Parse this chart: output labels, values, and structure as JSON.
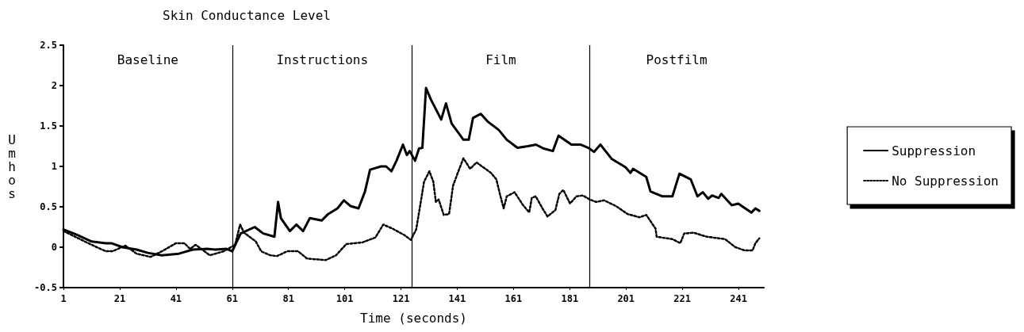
{
  "chart_data": {
    "type": "line",
    "title": "Skin Conductance Level",
    "xlabel": "Time (seconds)",
    "ylabel": "Umhos",
    "xlim": [
      1,
      250
    ],
    "xticks": [
      1,
      21,
      41,
      61,
      81,
      101,
      121,
      141,
      161,
      181,
      201,
      221,
      241
    ],
    "ylim": [
      -0.5,
      2.5
    ],
    "yticks": [
      -0.5,
      0,
      0.5,
      1,
      1.5,
      2,
      2.5
    ],
    "grid": false,
    "legend": "right",
    "marker": "none",
    "ref_lines": [
      {
        "axis": "x",
        "value": 61
      },
      {
        "axis": "x",
        "value": 125
      },
      {
        "axis": "x",
        "value": 188
      }
    ],
    "annotations": [
      "Baseline",
      "Instructions",
      "Film",
      "Postfilm"
    ],
    "series": [
      {
        "name": "Suppression",
        "color": "#000000",
        "line_style": "solid",
        "x": [
          1,
          6,
          11,
          16,
          18,
          22,
          27,
          31,
          36,
          42,
          47,
          52,
          55,
          59,
          61,
          64,
          69,
          72,
          76,
          77.3,
          78.3,
          81.5,
          83.8,
          86.2,
          88.6,
          92.8,
          95.1,
          98.4,
          100.7,
          103,
          105.9,
          108.2,
          110,
          113.9,
          115.7,
          117.6,
          119.4,
          121.7,
          123.1,
          124.1,
          126,
          127.4,
          128.6,
          129.9,
          131.6,
          135.3,
          137,
          139,
          143.2,
          145.1,
          146.6,
          149.4,
          152,
          155.8,
          158.6,
          162.4,
          166.1,
          169,
          171.8,
          175,
          177,
          181.6,
          184.8,
          187.6,
          189.6,
          191.9,
          196,
          200.8,
          202.6,
          203.5,
          208.2,
          209.7,
          213.8,
          217.5,
          220,
          224,
          226.4,
          228.3,
          230.2,
          231.6,
          233.9,
          234.9,
          238.6,
          240.9,
          245.6,
          247,
          248.4
        ],
        "values": [
          0.22,
          0.15,
          0.07,
          0.05,
          0.05,
          0,
          -0.03,
          -0.07,
          -0.1,
          -0.08,
          -0.03,
          -0.02,
          -0.03,
          -0.02,
          -0.05,
          0.17,
          0.25,
          0.17,
          0.13,
          0.56,
          0.36,
          0.2,
          0.28,
          0.2,
          0.36,
          0.33,
          0.41,
          0.48,
          0.58,
          0.51,
          0.48,
          0.69,
          0.96,
          1,
          1,
          0.94,
          1.07,
          1.27,
          1.14,
          1.19,
          1.07,
          1.22,
          1.23,
          1.97,
          1.83,
          1.58,
          1.78,
          1.53,
          1.33,
          1.33,
          1.6,
          1.65,
          1.55,
          1.45,
          1.33,
          1.23,
          1.25,
          1.27,
          1.22,
          1.19,
          1.38,
          1.27,
          1.27,
          1.23,
          1.18,
          1.27,
          1.09,
          0.99,
          0.92,
          0.97,
          0.87,
          0.69,
          0.63,
          0.63,
          0.91,
          0.84,
          0.63,
          0.68,
          0.6,
          0.64,
          0.61,
          0.66,
          0.52,
          0.54,
          0.43,
          0.48,
          0.45
        ]
      },
      {
        "name": "No Suppression",
        "color": "#000000",
        "line_style": "dotted",
        "x": [
          1,
          11,
          16,
          18.5,
          23,
          27,
          32,
          36,
          41,
          44,
          46,
          48,
          53,
          58,
          62,
          63.8,
          65.2,
          69.4,
          71.3,
          74.5,
          76.9,
          80.6,
          84.4,
          87.6,
          94.2,
          97.9,
          101.6,
          107.3,
          111.9,
          114.7,
          118,
          122.2,
          124.5,
          126.4,
          127.8,
          129.2,
          131.1,
          132.5,
          133.4,
          134.4,
          136.2,
          138.1,
          139.5,
          141.4,
          143.2,
          145.6,
          147.9,
          150.2,
          153,
          154.9,
          156.3,
          157.5,
          158.6,
          161.4,
          164.2,
          166.6,
          167.5,
          168.9,
          171.3,
          173.1,
          175.9,
          177.3,
          178.7,
          181.1,
          183.4,
          185.7,
          188.1,
          190.4,
          193.2,
          197.4,
          201.6,
          205.8,
          208.2,
          211.5,
          211.9,
          217.5,
          220.3,
          221.7,
          225,
          229.7,
          236.2,
          239.9,
          243.2,
          246,
          247,
          248.4
        ],
        "values": [
          0.2,
          0.03,
          -0.05,
          -0.05,
          0.02,
          -0.08,
          -0.12,
          -0.05,
          0.05,
          0.05,
          -0.02,
          0.03,
          -0.1,
          -0.05,
          0.03,
          0.28,
          0.18,
          0.07,
          -0.05,
          -0.1,
          -0.11,
          -0.05,
          -0.05,
          -0.14,
          -0.16,
          -0.1,
          0.04,
          0.06,
          0.12,
          0.28,
          0.23,
          0.15,
          0.09,
          0.22,
          0.51,
          0.81,
          0.94,
          0.81,
          0.56,
          0.59,
          0.4,
          0.41,
          0.76,
          0.94,
          1.1,
          0.97,
          1.05,
          0.99,
          0.92,
          0.84,
          0.64,
          0.48,
          0.63,
          0.68,
          0.53,
          0.43,
          0.61,
          0.63,
          0.48,
          0.38,
          0.46,
          0.66,
          0.71,
          0.54,
          0.63,
          0.64,
          0.59,
          0.56,
          0.58,
          0.51,
          0.41,
          0.37,
          0.4,
          0.23,
          0.13,
          0.1,
          0.05,
          0.17,
          0.18,
          0.13,
          0.1,
          0,
          -0.04,
          -0.04,
          0.05,
          0.11
        ]
      }
    ]
  }
}
